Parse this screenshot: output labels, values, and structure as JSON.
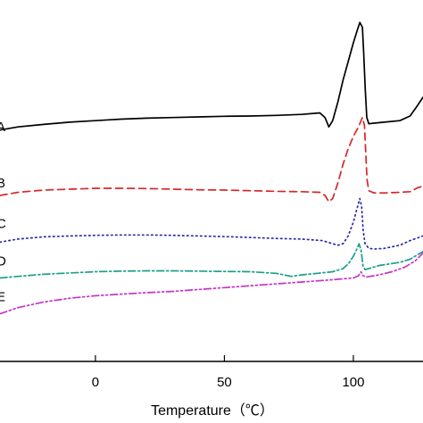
{
  "chart_data": {
    "type": "line",
    "title": "",
    "xlabel": "Temperature（℃）",
    "ylabel": "",
    "xlim": [
      -37,
      127
    ],
    "ylim": [
      -0.5,
      10.5
    ],
    "xticks": [
      0,
      50,
      100
    ],
    "grid": false,
    "legend": "none",
    "series": [
      {
        "name": "A",
        "color": "#000000",
        "dash": "solid",
        "label_pos": [
          -37,
          7.0
        ],
        "points": [
          [
            -37,
            6.9
          ],
          [
            -30,
            7.0
          ],
          [
            -20,
            7.08
          ],
          [
            -10,
            7.15
          ],
          [
            0,
            7.2
          ],
          [
            10,
            7.25
          ],
          [
            20,
            7.28
          ],
          [
            30,
            7.3
          ],
          [
            40,
            7.32
          ],
          [
            50,
            7.34
          ],
          [
            60,
            7.35
          ],
          [
            70,
            7.37
          ],
          [
            80,
            7.4
          ],
          [
            87,
            7.45
          ],
          [
            89,
            7.3
          ],
          [
            90.5,
            7.0
          ],
          [
            92,
            7.2
          ],
          [
            94,
            7.8
          ],
          [
            96,
            8.5
          ],
          [
            98,
            9.1
          ],
          [
            100,
            9.7
          ],
          [
            101.5,
            10.1
          ],
          [
            102.5,
            10.35
          ],
          [
            103.5,
            10.2
          ],
          [
            104,
            9.4
          ],
          [
            104.6,
            8.2
          ],
          [
            105.2,
            7.3
          ],
          [
            106,
            7.1
          ],
          [
            108,
            7.12
          ],
          [
            112,
            7.15
          ],
          [
            118,
            7.2
          ],
          [
            122,
            7.35
          ],
          [
            125,
            7.7
          ],
          [
            127,
            7.95
          ]
        ]
      },
      {
        "name": "B",
        "color": "#d62728",
        "dash": "8,5",
        "label_pos": [
          -37,
          5.2
        ],
        "points": [
          [
            -37,
            4.8
          ],
          [
            -30,
            4.9
          ],
          [
            -20,
            4.97
          ],
          [
            -10,
            5.0
          ],
          [
            0,
            5.03
          ],
          [
            10,
            5.03
          ],
          [
            20,
            5.02
          ],
          [
            30,
            5.0
          ],
          [
            40,
            4.98
          ],
          [
            50,
            4.97
          ],
          [
            60,
            4.95
          ],
          [
            70,
            4.93
          ],
          [
            80,
            4.92
          ],
          [
            87,
            4.9
          ],
          [
            89,
            4.8
          ],
          [
            90.5,
            4.6
          ],
          [
            92,
            4.7
          ],
          [
            94,
            5.2
          ],
          [
            96,
            5.8
          ],
          [
            98,
            6.3
          ],
          [
            100,
            6.7
          ],
          [
            102,
            7.0
          ],
          [
            103.5,
            7.3
          ],
          [
            104.3,
            7.05
          ],
          [
            104.8,
            6.2
          ],
          [
            105.3,
            5.3
          ],
          [
            106,
            4.95
          ],
          [
            108,
            4.88
          ],
          [
            112,
            4.88
          ],
          [
            118,
            4.9
          ],
          [
            122,
            4.92
          ],
          [
            125,
            5.05
          ],
          [
            127,
            5.1
          ]
        ]
      },
      {
        "name": "C",
        "color": "#2c2ca8",
        "dash": "1.5,3.5",
        "label_pos": [
          -37,
          3.9
        ],
        "points": [
          [
            -37,
            3.3
          ],
          [
            -30,
            3.4
          ],
          [
            -20,
            3.47
          ],
          [
            -10,
            3.5
          ],
          [
            0,
            3.52
          ],
          [
            10,
            3.53
          ],
          [
            20,
            3.53
          ],
          [
            30,
            3.52
          ],
          [
            40,
            3.5
          ],
          [
            50,
            3.48
          ],
          [
            60,
            3.45
          ],
          [
            70,
            3.42
          ],
          [
            80,
            3.4
          ],
          [
            88,
            3.35
          ],
          [
            92,
            3.25
          ],
          [
            94,
            3.2
          ],
          [
            96,
            3.25
          ],
          [
            98,
            3.5
          ],
          [
            100,
            3.95
          ],
          [
            101.5,
            4.4
          ],
          [
            102.5,
            4.7
          ],
          [
            103.2,
            4.45
          ],
          [
            103.8,
            3.7
          ],
          [
            104.5,
            3.25
          ],
          [
            106,
            3.1
          ],
          [
            108,
            3.08
          ],
          [
            112,
            3.1
          ],
          [
            118,
            3.2
          ],
          [
            122,
            3.35
          ],
          [
            127,
            3.5
          ]
        ]
      },
      {
        "name": "D",
        "color": "#1a9e8a",
        "dash": "8,3,2,3",
        "label_pos": [
          -37,
          2.7
        ],
        "points": [
          [
            -37,
            2.15
          ],
          [
            -30,
            2.2
          ],
          [
            -20,
            2.27
          ],
          [
            -10,
            2.31
          ],
          [
            0,
            2.35
          ],
          [
            10,
            2.37
          ],
          [
            20,
            2.38
          ],
          [
            30,
            2.38
          ],
          [
            40,
            2.37
          ],
          [
            50,
            2.36
          ],
          [
            60,
            2.35
          ],
          [
            70,
            2.3
          ],
          [
            76,
            2.2
          ],
          [
            80,
            2.25
          ],
          [
            86,
            2.3
          ],
          [
            92,
            2.35
          ],
          [
            96,
            2.45
          ],
          [
            98,
            2.6
          ],
          [
            100,
            2.85
          ],
          [
            101.5,
            3.1
          ],
          [
            102.2,
            3.25
          ],
          [
            103,
            3.05
          ],
          [
            103.7,
            2.55
          ],
          [
            104.5,
            2.42
          ],
          [
            106,
            2.45
          ],
          [
            110,
            2.55
          ],
          [
            114,
            2.6
          ],
          [
            118,
            2.65
          ],
          [
            122,
            2.75
          ],
          [
            125,
            2.9
          ],
          [
            127,
            3.0
          ]
        ]
      },
      {
        "name": "E",
        "color": "#c733c7",
        "dash": "8,3,2,3,2,3",
        "label_pos": [
          -37,
          1.55
        ],
        "points": [
          [
            -37,
            1.0
          ],
          [
            -30,
            1.2
          ],
          [
            -20,
            1.38
          ],
          [
            -10,
            1.5
          ],
          [
            0,
            1.58
          ],
          [
            10,
            1.63
          ],
          [
            20,
            1.68
          ],
          [
            30,
            1.72
          ],
          [
            40,
            1.78
          ],
          [
            50,
            1.84
          ],
          [
            60,
            1.9
          ],
          [
            70,
            1.96
          ],
          [
            80,
            2.02
          ],
          [
            90,
            2.08
          ],
          [
            100,
            2.15
          ],
          [
            102,
            2.22
          ],
          [
            103,
            2.35
          ],
          [
            103.8,
            2.22
          ],
          [
            105,
            2.18
          ],
          [
            110,
            2.25
          ],
          [
            115,
            2.35
          ],
          [
            120,
            2.5
          ],
          [
            124,
            2.7
          ],
          [
            127,
            2.95
          ]
        ]
      }
    ]
  }
}
